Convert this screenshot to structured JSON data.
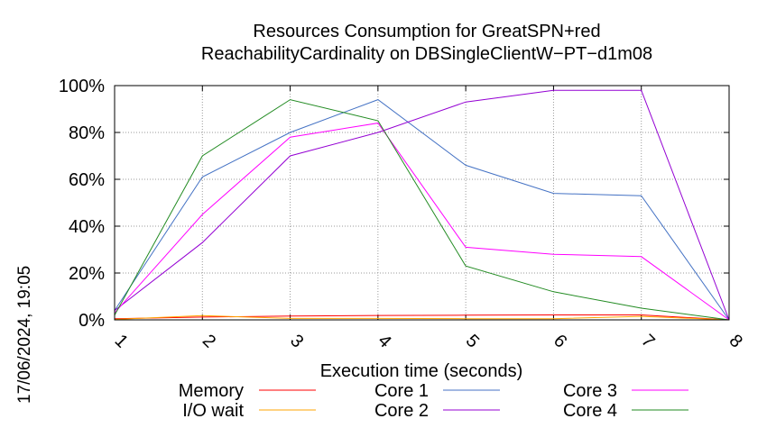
{
  "chart_data": {
    "type": "line",
    "title": "Resources Consumption for GreatSPN+red",
    "subtitle": "ReachabilityCardinality on DBSingleClientW−PT−d1m08",
    "xlabel": "Execution time (seconds)",
    "ylabel": "",
    "timestamp": "17/06/2024, 19:05",
    "x": [
      1,
      2,
      3,
      4,
      5,
      6,
      7,
      8
    ],
    "xlim": [
      1,
      8
    ],
    "ylim": [
      0,
      100
    ],
    "x_ticks": [
      "1",
      "2",
      "3",
      "4",
      "5",
      "6",
      "7",
      "8"
    ],
    "y_ticks": [
      "0%",
      "20%",
      "40%",
      "60%",
      "80%",
      "100%"
    ],
    "y_tick_values": [
      0,
      20,
      40,
      60,
      80,
      100
    ],
    "grid": true,
    "legend_position": "bottom",
    "series": [
      {
        "name": "Memory",
        "color": "#ff0000",
        "values": [
          0.5,
          1.2,
          1.6,
          1.9,
          2.0,
          2.1,
          2.1,
          0
        ]
      },
      {
        "name": "I/O wait",
        "color": "#ffa500",
        "values": [
          0.2,
          1.8,
          0.6,
          0.6,
          0.5,
          0.5,
          1.5,
          0
        ]
      },
      {
        "name": "Core 1",
        "color": "#4472c4",
        "values": [
          4,
          61,
          80,
          94,
          66,
          54,
          53,
          0
        ]
      },
      {
        "name": "Core 2",
        "color": "#9400d3",
        "values": [
          4,
          33,
          70,
          80,
          93,
          98,
          98,
          0
        ]
      },
      {
        "name": "Core 3",
        "color": "#ff00ff",
        "values": [
          3,
          45,
          78,
          84,
          31,
          28,
          27,
          0
        ]
      },
      {
        "name": "Core 4",
        "color": "#228b22",
        "values": [
          2,
          70,
          94,
          85,
          23,
          12,
          5,
          0
        ]
      }
    ]
  }
}
